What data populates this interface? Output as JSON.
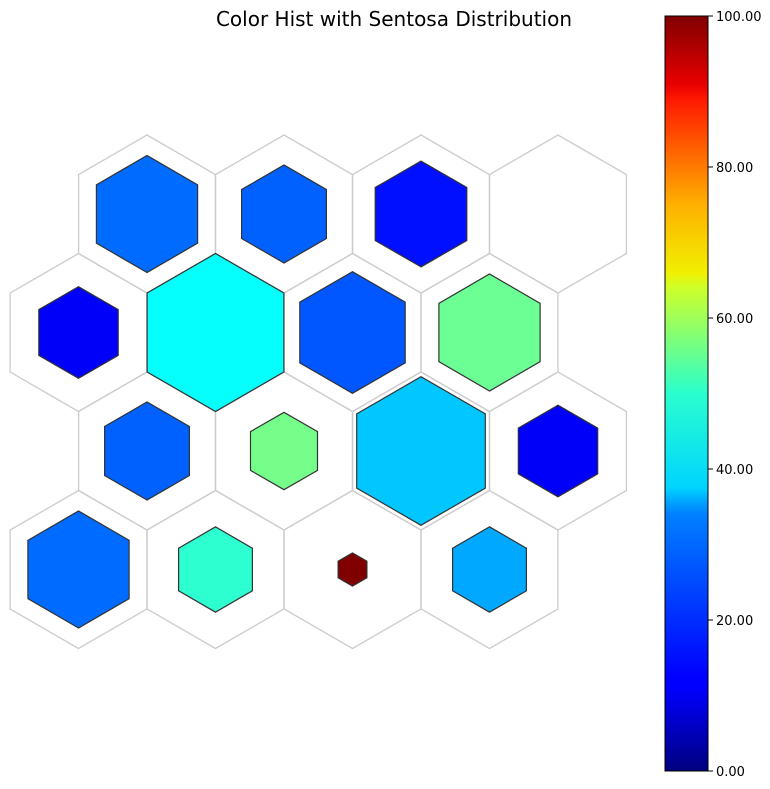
{
  "chart_data": {
    "type": "heatmap",
    "title": "Color Hist with Sentosa Distribution",
    "colormap": "jet",
    "colorbar": {
      "range": [
        0,
        100
      ],
      "ticks": [
        "0.00",
        "20.00",
        "40.00",
        "60.00",
        "80.00",
        "100.00"
      ]
    },
    "grid": "hexagonal 4x4",
    "cells": [
      {
        "row": 0,
        "col": 0,
        "value": 23,
        "size": 0.74
      },
      {
        "row": 0,
        "col": 1,
        "value": 22,
        "size": 0.62
      },
      {
        "row": 0,
        "col": 2,
        "value": 14,
        "size": 0.67
      },
      {
        "row": 0,
        "col": 3,
        "value": null,
        "size": 0
      },
      {
        "row": 1,
        "col": 0,
        "value": 12,
        "size": 0.58
      },
      {
        "row": 1,
        "col": 1,
        "value": 38,
        "size": 1.0
      },
      {
        "row": 1,
        "col": 2,
        "value": 21,
        "size": 0.77
      },
      {
        "row": 1,
        "col": 3,
        "value": 48,
        "size": 0.74
      },
      {
        "row": 2,
        "col": 0,
        "value": 22,
        "size": 0.62
      },
      {
        "row": 2,
        "col": 1,
        "value": 49,
        "size": 0.49
      },
      {
        "row": 2,
        "col": 2,
        "value": 32,
        "size": 0.94
      },
      {
        "row": 2,
        "col": 3,
        "value": 12,
        "size": 0.58
      },
      {
        "row": 3,
        "col": 0,
        "value": 23,
        "size": 0.74
      },
      {
        "row": 3,
        "col": 1,
        "value": 42,
        "size": 0.54
      },
      {
        "row": 3,
        "col": 2,
        "value": 100,
        "size": 0.21
      },
      {
        "row": 3,
        "col": 3,
        "value": 29,
        "size": 0.54
      }
    ]
  }
}
